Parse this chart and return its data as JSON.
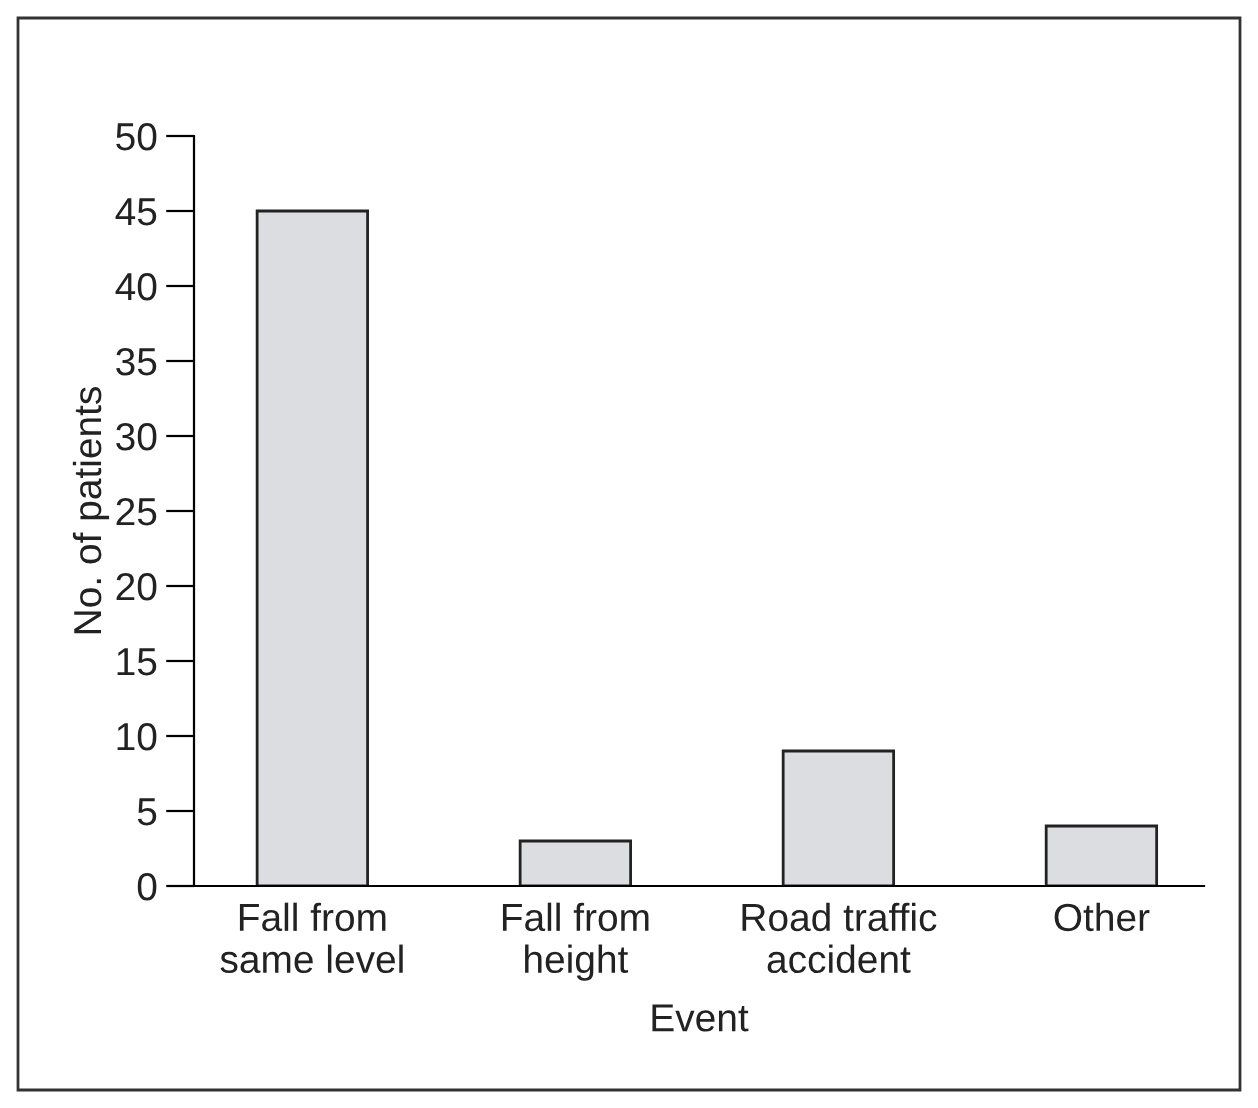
{
  "chart_data": {
    "type": "bar",
    "xlabel": "Event",
    "ylabel": "No. of patients",
    "categories": [
      "Fall from\nsame level",
      "Fall from\nheight",
      "Road traffic\naccident",
      "Other"
    ],
    "values": [
      45,
      3,
      9,
      4
    ],
    "color": "#dcdde0",
    "ylim": [
      0,
      50
    ],
    "yticks": [
      0,
      5,
      10,
      15,
      20,
      25,
      30,
      35,
      40,
      45,
      50
    ],
    "grid": false
  }
}
